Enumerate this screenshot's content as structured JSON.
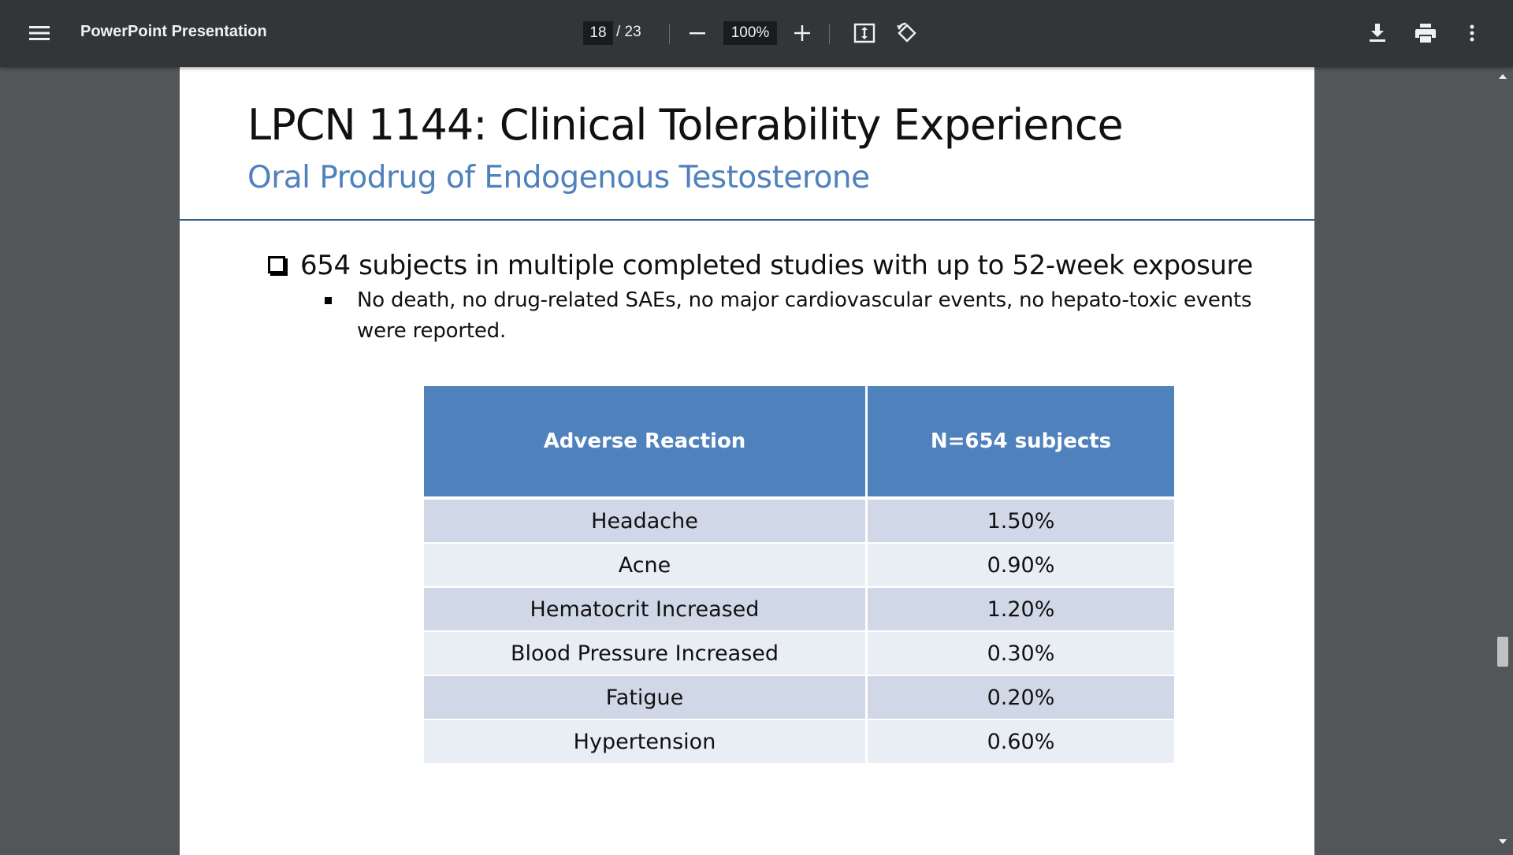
{
  "toolbar": {
    "title": "PowerPoint Presentation",
    "current_page": "18",
    "page_separator": "/ 23",
    "zoom": "100%",
    "icons": {
      "menu": "menu-icon",
      "zoom_out": "minus-icon",
      "zoom_in": "plus-icon",
      "fit": "fit-to-page-icon",
      "rotate": "rotate-icon",
      "download": "download-icon",
      "print": "print-icon",
      "more": "more-vert-icon"
    }
  },
  "slide": {
    "title": "LPCN 1144: Clinical Tolerability Experience",
    "subtitle": "Oral Prodrug of Endogenous Testosterone",
    "bullet_main": "654 subjects in multiple completed studies with up to 52-week exposure",
    "bullet_sub": "No death, no drug-related SAEs, no major cardiovascular events, no hepato-toxic events were reported.",
    "table": {
      "headers": [
        "Adverse Reaction",
        "N=654 subjects"
      ],
      "rows": [
        [
          "Headache",
          "1.50%"
        ],
        [
          "Acne",
          "0.90%"
        ],
        [
          "Hematocrit Increased",
          "1.20%"
        ],
        [
          "Blood Pressure Increased",
          "0.30%"
        ],
        [
          "Fatigue",
          "0.20%"
        ],
        [
          "Hypertension",
          "0.60%"
        ]
      ]
    }
  },
  "colors": {
    "toolbar_bg": "#323639",
    "viewer_bg": "#525659",
    "subtitle": "#4f81bd",
    "table_header": "#4f81bd",
    "row_dark": "#d0d8e8",
    "row_light": "#e9edf4"
  }
}
